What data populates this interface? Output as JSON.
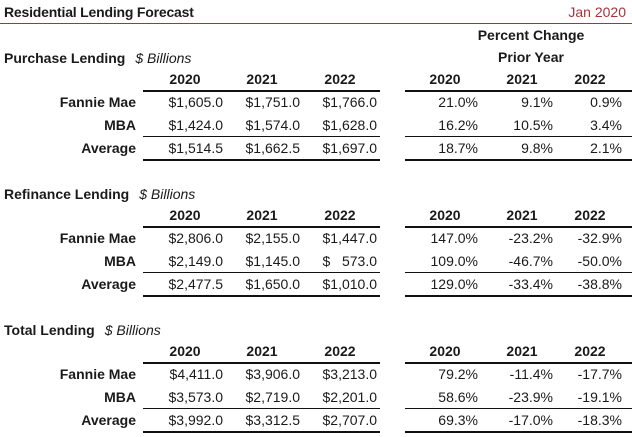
{
  "header": {
    "title": "Residential Lending Forecast",
    "date": "Jan 2020",
    "accent_color": "#a8323a"
  },
  "percent_header": {
    "line1": "Percent Change",
    "line2": "Prior Year"
  },
  "years": [
    "2020",
    "2021",
    "2022"
  ],
  "sections": [
    {
      "title": "Purchase Lending",
      "unit": "$ Billions",
      "rows": [
        {
          "label": "Fannie Mae",
          "values": [
            "$1,605.0",
            "$1,751.0",
            "$1,766.0"
          ],
          "pct": [
            "21.0%",
            "9.1%",
            "0.9%"
          ]
        },
        {
          "label": "MBA",
          "values": [
            "$1,424.0",
            "$1,574.0",
            "$1,628.0"
          ],
          "pct": [
            "16.2%",
            "10.5%",
            "3.4%"
          ]
        },
        {
          "label": "Average",
          "values": [
            "$1,514.5",
            "$1,662.5",
            "$1,697.0"
          ],
          "pct": [
            "18.7%",
            "9.8%",
            "2.1%"
          ]
        }
      ]
    },
    {
      "title": "Refinance Lending",
      "unit": "$ Billions",
      "rows": [
        {
          "label": "Fannie Mae",
          "values": [
            "$2,806.0",
            "$2,155.0",
            "$1,447.0"
          ],
          "pct": [
            "147.0%",
            "-23.2%",
            "-32.9%"
          ]
        },
        {
          "label": "MBA",
          "values": [
            "$2,149.0",
            "$1,145.0",
            "$   573.0"
          ],
          "pct": [
            "109.0%",
            "-46.7%",
            "-50.0%"
          ]
        },
        {
          "label": "Average",
          "values": [
            "$2,477.5",
            "$1,650.0",
            "$1,010.0"
          ],
          "pct": [
            "129.0%",
            "-33.4%",
            "-38.8%"
          ]
        }
      ]
    },
    {
      "title": "Total Lending",
      "unit": "$ Billions",
      "rows": [
        {
          "label": "Fannie Mae",
          "values": [
            "$4,411.0",
            "$3,906.0",
            "$3,213.0"
          ],
          "pct": [
            "79.2%",
            "-11.4%",
            "-17.7%"
          ]
        },
        {
          "label": "MBA",
          "values": [
            "$3,573.0",
            "$2,719.0",
            "$2,201.0"
          ],
          "pct": [
            "58.6%",
            "-23.9%",
            "-19.1%"
          ]
        },
        {
          "label": "Average",
          "values": [
            "$3,992.0",
            "$3,312.5",
            "$2,707.0"
          ],
          "pct": [
            "69.3%",
            "-17.0%",
            "-18.3%"
          ]
        }
      ]
    }
  ]
}
